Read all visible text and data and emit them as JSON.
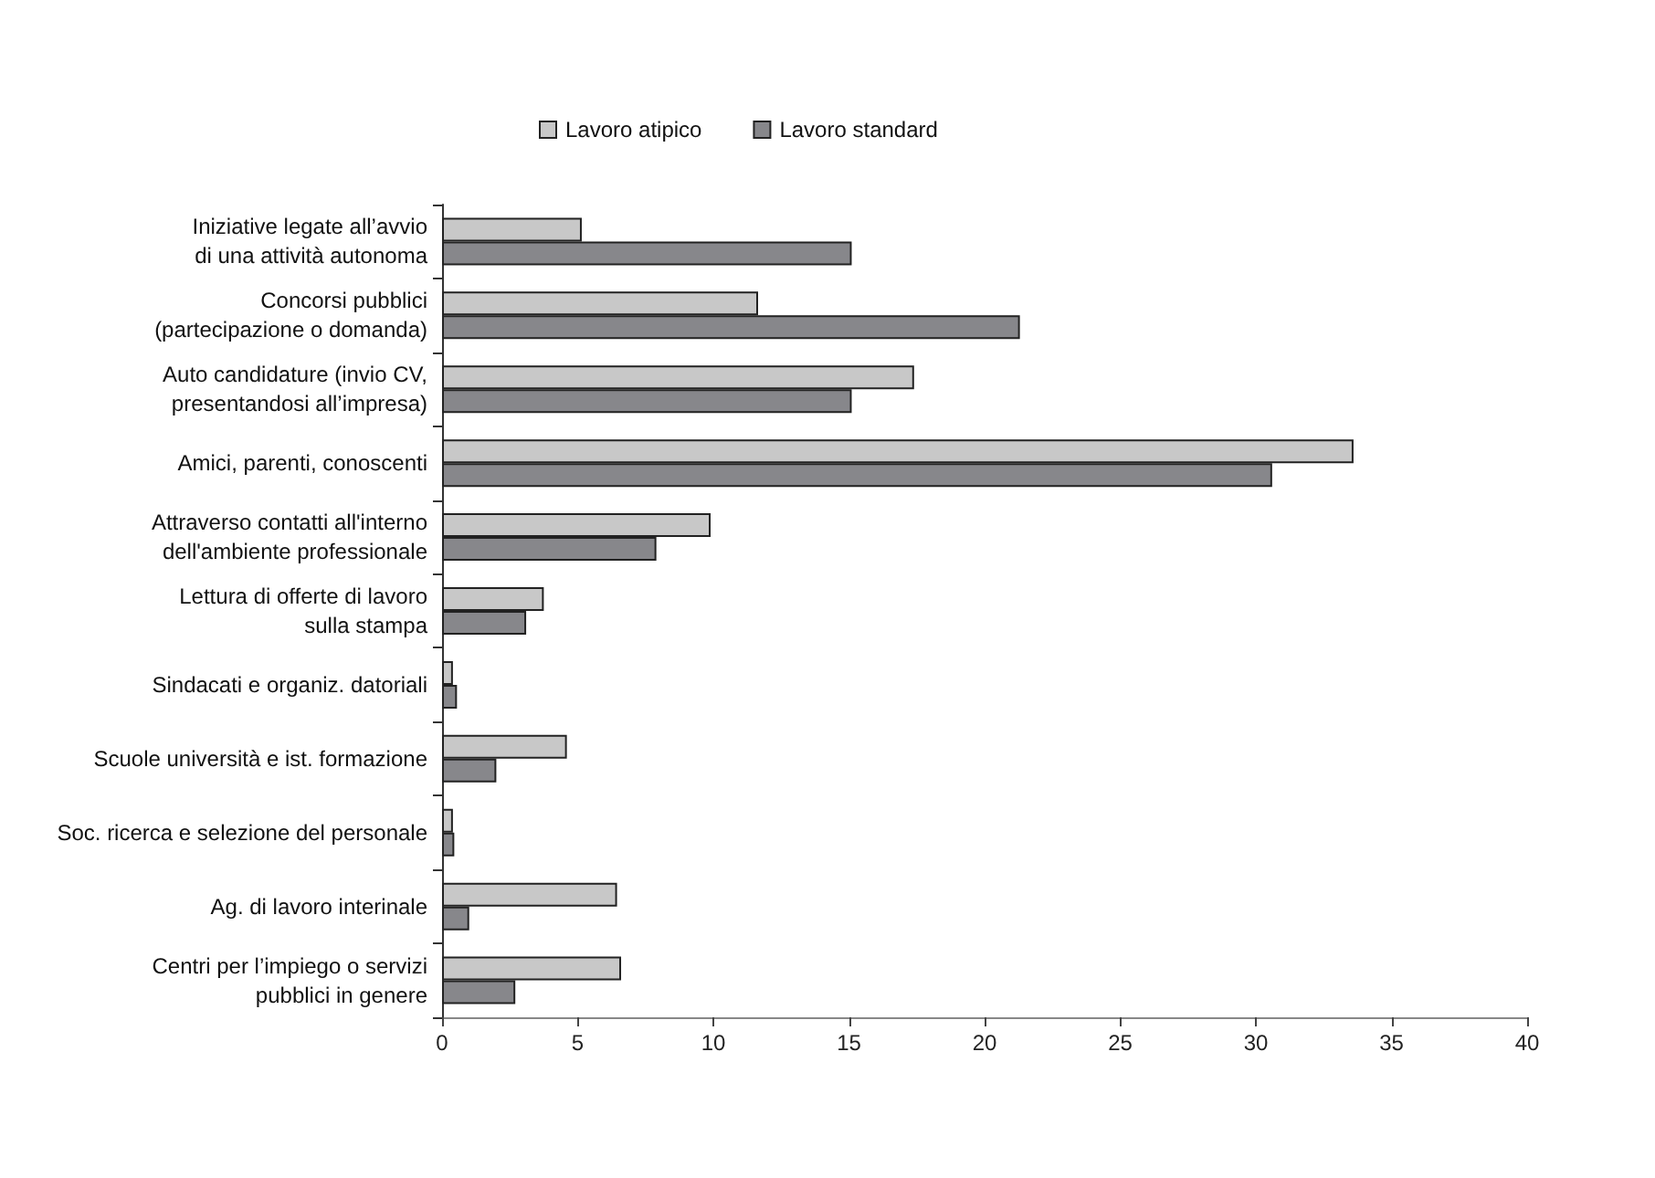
{
  "chart_data": {
    "type": "bar",
    "orientation": "horizontal",
    "categories": [
      "Iniziative legate all’avvio\ndi una attività autonoma",
      "Concorsi pubblici\n(partecipazione o domanda)",
      "Auto candidature (invio CV,\npresentandosi all’impresa)",
      "Amici, parenti, conoscenti",
      "Attraverso contatti all'interno\ndell'ambiente professionale",
      "Lettura di offerte di lavoro\nsulla stampa",
      "Sindacati e organiz. datoriali",
      "Scuole università e ist. formazione",
      "Soc. ricerca e selezione del personale",
      "Ag. di lavoro interinale",
      "Centri per l’impiego o servizi\npubblici in genere"
    ],
    "series": [
      {
        "name": "Lavoro atipico",
        "color": "#c8c8c8",
        "values": [
          5.15,
          11.65,
          17.4,
          33.6,
          9.9,
          3.75,
          0.4,
          4.6,
          0.4,
          6.45,
          6.6
        ]
      },
      {
        "name": "Lavoro standard",
        "color": "#87878b",
        "values": [
          15.1,
          21.3,
          15.1,
          30.6,
          7.9,
          3.1,
          0.55,
          2.0,
          0.45,
          1.0,
          2.7
        ]
      }
    ],
    "xlim": [
      0,
      40
    ],
    "xticks": [
      0,
      5,
      10,
      15,
      20,
      25,
      30,
      35,
      40
    ],
    "grid": false,
    "legend": "top"
  }
}
